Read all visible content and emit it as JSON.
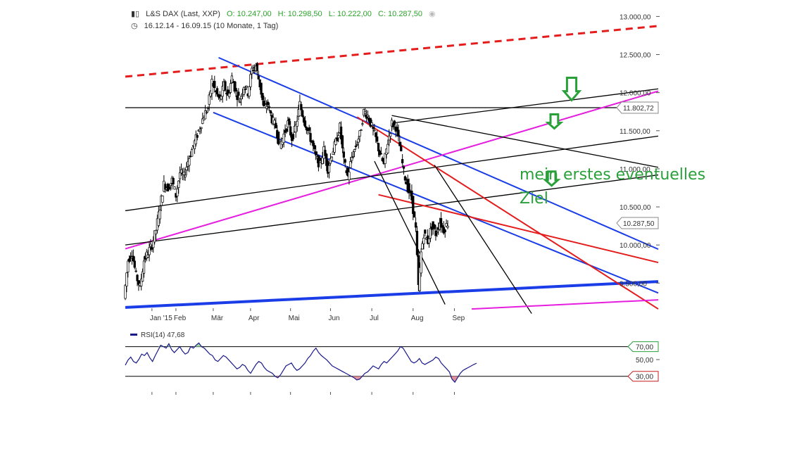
{
  "header": {
    "symbol": "L&S DAX (Last, XXP)",
    "open": "O: 10.247,00",
    "high": "H: 10.298,50",
    "low": "L: 10.222,00",
    "close": "C: 10.287,50",
    "period": "16.12.14 - 16.09.15 (10 Monate, 1 Tag)"
  },
  "annotation": {
    "line1": "mein erstes eventuelles",
    "line2": "Ziel"
  },
  "colors": {
    "up": "#ffffff",
    "down": "#000000",
    "green": "#2aa03a",
    "blue": "#1a3de8",
    "red": "#e41c1c",
    "magenta": "#e61ee0"
  },
  "chart_data": {
    "type": "candlestick",
    "y_axis": {
      "ticks": [
        "13.000,00",
        "12.500,00",
        "12.000,00",
        "11.500,00",
        "11.000,00",
        "10.500,00",
        "10.000,00",
        "9.500,00"
      ],
      "tick_values": [
        13000,
        12500,
        12000,
        11500,
        11000,
        10500,
        10000,
        9500
      ],
      "range": [
        9170,
        13050
      ]
    },
    "x_axis": {
      "ticks": [
        "Jan '15",
        "Feb",
        "Mär",
        "Apr",
        "Mai",
        "Jun",
        "Jul",
        "Aug",
        "Sep"
      ],
      "tick_days": [
        20,
        38,
        66,
        94,
        124,
        154,
        185,
        216,
        247
      ],
      "range_days": [
        0,
        400
      ]
    },
    "price_labels": [
      {
        "label": "11.802,72",
        "value": 11802.72
      },
      {
        "label": "10.287,50",
        "value": 10287.5
      }
    ],
    "price_points": [
      [
        0,
        9300
      ],
      [
        3,
        9800
      ],
      [
        6,
        9900
      ],
      [
        9,
        9600
      ],
      [
        12,
        9450
      ],
      [
        15,
        9800
      ],
      [
        18,
        9900
      ],
      [
        21,
        10000
      ],
      [
        24,
        10200
      ],
      [
        27,
        10500
      ],
      [
        30,
        10800
      ],
      [
        33,
        10750
      ],
      [
        36,
        10850
      ],
      [
        39,
        10650
      ],
      [
        42,
        10950
      ],
      [
        45,
        10900
      ],
      [
        48,
        11100
      ],
      [
        51,
        11250
      ],
      [
        54,
        11400
      ],
      [
        57,
        11550
      ],
      [
        60,
        11700
      ],
      [
        63,
        11800
      ],
      [
        66,
        12150
      ],
      [
        69,
        12000
      ],
      [
        72,
        11900
      ],
      [
        75,
        12100
      ],
      [
        78,
        11950
      ],
      [
        81,
        12200
      ],
      [
        84,
        12000
      ],
      [
        87,
        11900
      ],
      [
        90,
        12100
      ],
      [
        93,
        12000
      ],
      [
        96,
        12300
      ],
      [
        99,
        12350
      ],
      [
        102,
        12100
      ],
      [
        105,
        11800
      ],
      [
        108,
        11850
      ],
      [
        111,
        11650
      ],
      [
        114,
        11550
      ],
      [
        117,
        11300
      ],
      [
        120,
        11450
      ],
      [
        123,
        11600
      ],
      [
        126,
        11400
      ],
      [
        129,
        11550
      ],
      [
        132,
        11850
      ],
      [
        135,
        11650
      ],
      [
        138,
        11500
      ],
      [
        141,
        11350
      ],
      [
        144,
        11150
      ],
      [
        147,
        11050
      ],
      [
        150,
        11250
      ],
      [
        153,
        11000
      ],
      [
        156,
        11200
      ],
      [
        159,
        11350
      ],
      [
        162,
        11550
      ],
      [
        165,
        11100
      ],
      [
        168,
        10900
      ],
      [
        171,
        11150
      ],
      [
        174,
        11300
      ],
      [
        177,
        11450
      ],
      [
        180,
        11750
      ],
      [
        183,
        11700
      ],
      [
        186,
        11550
      ],
      [
        189,
        11400
      ],
      [
        192,
        11200
      ],
      [
        195,
        11050
      ],
      [
        198,
        11350
      ],
      [
        201,
        11600
      ],
      [
        204,
        11550
      ],
      [
        207,
        11300
      ],
      [
        210,
        10950
      ],
      [
        213,
        10750
      ],
      [
        216,
        10600
      ],
      [
        219,
        10200
      ],
      [
        221,
        9450
      ],
      [
        223,
        9900
      ],
      [
        225,
        10150
      ],
      [
        228,
        10050
      ],
      [
        231,
        10250
      ],
      [
        234,
        10150
      ],
      [
        237,
        10300
      ],
      [
        240,
        10200
      ],
      [
        243,
        10287.5
      ]
    ],
    "series": [
      {
        "name": "L&S DAX",
        "type": "candlestick",
        "open": 10247.0,
        "high": 10298.5,
        "low": 10222.0,
        "close": 10287.5,
        "start": "16.12.14",
        "end": "16.09.15"
      }
    ],
    "trendlines": [
      {
        "color": "#e41c1c",
        "style": "dashed",
        "from": [
          0,
          12210
        ],
        "to": [
          400,
          12875
        ]
      },
      {
        "color": "#000000",
        "from": [
          0,
          11802.72
        ],
        "to": [
          400,
          11802.72
        ]
      },
      {
        "color": "#1a3de8",
        "from": [
          70,
          12460
        ],
        "to": [
          400,
          9945
        ]
      },
      {
        "color": "#1a3de8",
        "from": [
          66,
          11740
        ],
        "to": [
          400,
          9370
        ]
      },
      {
        "color": "#e61ee0",
        "from": [
          0,
          9950
        ],
        "to": [
          400,
          12020
        ]
      },
      {
        "color": "#000000",
        "from": [
          0,
          10450
        ],
        "to": [
          400,
          11430
        ]
      },
      {
        "color": "#000000",
        "from": [
          0,
          10000
        ],
        "to": [
          400,
          10920
        ]
      },
      {
        "color": "#000000",
        "from": [
          200,
          11600
        ],
        "to": [
          400,
          12050
        ]
      },
      {
        "color": "#000000",
        "from": [
          200,
          11700
        ],
        "to": [
          400,
          11020
        ]
      },
      {
        "color": "#1a3de8",
        "style": "thick",
        "from": [
          0,
          9180
        ],
        "to": [
          400,
          9520
        ]
      },
      {
        "color": "#e41c1c",
        "from": [
          174,
          11680
        ],
        "to": [
          400,
          9160
        ]
      },
      {
        "color": "#e41c1c",
        "from": [
          190,
          10660
        ],
        "to": [
          400,
          9770
        ]
      },
      {
        "color": "#000000",
        "from": [
          187,
          11100
        ],
        "to": [
          240,
          9220
        ]
      },
      {
        "color": "#000000",
        "from": [
          232,
          11050
        ],
        "to": [
          305,
          9100
        ]
      },
      {
        "color": "#e61ee0",
        "from": [
          260,
          9160
        ],
        "to": [
          400,
          9280
        ]
      }
    ],
    "markers": [
      {
        "type": "down-arrow",
        "color": "#2aa03a",
        "at": [
          335,
          11900
        ]
      },
      {
        "type": "down-arrow",
        "color": "#2aa03a",
        "at": [
          322,
          11530
        ]
      },
      {
        "type": "down-arrow",
        "color": "#2aa03a",
        "at": [
          320,
          10780
        ]
      }
    ],
    "rsi": {
      "label": "RSI(14)",
      "value": "47,68",
      "ticks": [
        "70,00",
        "50,00",
        "30,00"
      ],
      "tick_values": [
        70,
        50,
        30
      ],
      "values": [
        45,
        52,
        56,
        50,
        48,
        53,
        60,
        58,
        62,
        55,
        50,
        58,
        65,
        72,
        70,
        68,
        74,
        66,
        62,
        66,
        70,
        64,
        60,
        62,
        70,
        68,
        72,
        75,
        70,
        68,
        64,
        60,
        58,
        52,
        50,
        54,
        58,
        56,
        52,
        48,
        44,
        40,
        42,
        46,
        44,
        38,
        34,
        40,
        46,
        50,
        48,
        42,
        38,
        36,
        34,
        30,
        28,
        32,
        38,
        44,
        46,
        48,
        42,
        38,
        40,
        44,
        48,
        54,
        58,
        64,
        68,
        62,
        58,
        55,
        52,
        48,
        44,
        42,
        40,
        38,
        36,
        34,
        32,
        30,
        28,
        25,
        26,
        30,
        34,
        36,
        40,
        44,
        42,
        40,
        46,
        50,
        48,
        52,
        56,
        60,
        64,
        70,
        68,
        62,
        56,
        50,
        48,
        50,
        54,
        48,
        46,
        48,
        50,
        52,
        56,
        54,
        48,
        44,
        40,
        36,
        26,
        22,
        28,
        34,
        38,
        40,
        42,
        44,
        46,
        47.68
      ]
    }
  }
}
